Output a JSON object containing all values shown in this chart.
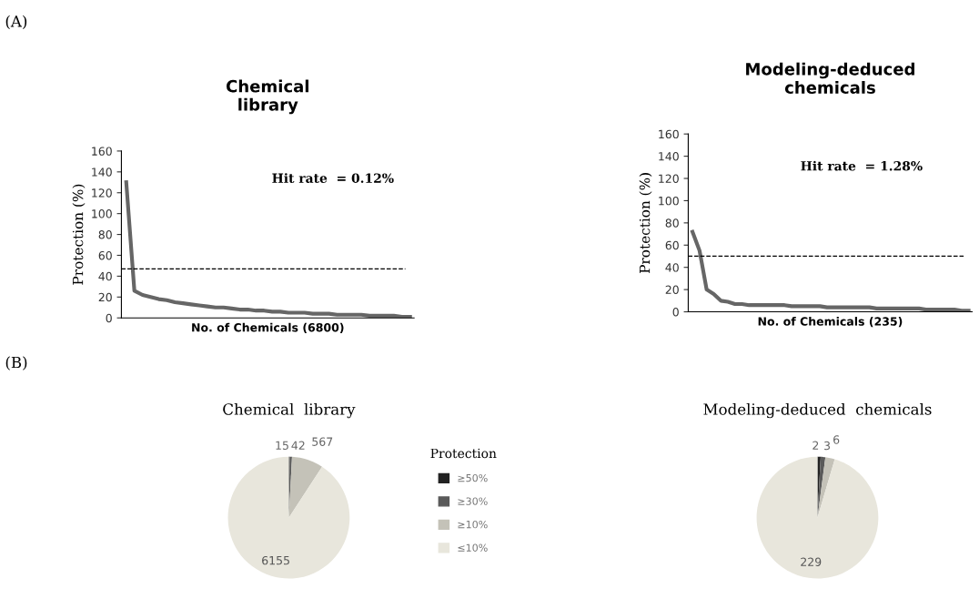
{
  "chart_data": [
    {
      "type": "line",
      "title": "Chemical\nlibrary",
      "xlabel": "No. of Chemicals (6800)",
      "ylabel": "Protection (%)",
      "categories": [
        null,
        null,
        null,
        null,
        null,
        null,
        null,
        null,
        null,
        null,
        null,
        null,
        null,
        null,
        null,
        null,
        null,
        null,
        null,
        null,
        null,
        null,
        null,
        null,
        null,
        null,
        null,
        null,
        null,
        null,
        null,
        null,
        null,
        null,
        null,
        null
      ],
      "series": [
        {
          "color": "#666666",
          "values": [
            130,
            26,
            22,
            20,
            18,
            17,
            15,
            14,
            13,
            12,
            11,
            10,
            10,
            9,
            8,
            8,
            7,
            7,
            6,
            6,
            5,
            5,
            5,
            4,
            4,
            4,
            3,
            3,
            3,
            3,
            2,
            2,
            2,
            2,
            1,
            1
          ]
        }
      ],
      "ylim": [
        0,
        160
      ],
      "yticks": [
        0,
        20,
        40,
        60,
        80,
        100,
        120,
        140,
        160
      ],
      "ref_lines": [
        {
          "axis": "y",
          "value": 47,
          "line_style": "dashed",
          "color": "#000000"
        }
      ],
      "annotations": [
        "(A)",
        "Hit rate  = 0.12%"
      ],
      "grid": false,
      "legend": false,
      "marker": "none",
      "line_style": "solid",
      "tick_labels": "y"
    },
    {
      "type": "line",
      "title": "Modeling-deduced\nchemicals",
      "xlabel": "No. of Chemicals (235)",
      "ylabel": "Protection (%)",
      "categories": [
        null,
        null,
        null,
        null,
        null,
        null,
        null,
        null,
        null,
        null,
        null,
        null,
        null,
        null,
        null,
        null,
        null,
        null,
        null,
        null,
        null,
        null,
        null,
        null,
        null,
        null,
        null,
        null,
        null,
        null,
        null,
        null,
        null,
        null,
        null,
        null,
        null,
        null,
        null,
        null
      ],
      "series": [
        {
          "color": "#666666",
          "values": [
            72,
            55,
            20,
            16,
            10,
            9,
            7,
            7,
            6,
            6,
            6,
            6,
            6,
            6,
            5,
            5,
            5,
            5,
            5,
            4,
            4,
            4,
            4,
            4,
            4,
            4,
            3,
            3,
            3,
            3,
            3,
            3,
            3,
            2,
            2,
            2,
            2,
            2,
            1,
            1
          ]
        }
      ],
      "ylim": [
        0,
        160
      ],
      "yticks": [
        0,
        20,
        40,
        60,
        80,
        100,
        120,
        140,
        160
      ],
      "ref_lines": [
        {
          "axis": "y",
          "value": 50,
          "line_style": "dashed",
          "color": "#000000"
        }
      ],
      "annotations": [
        "Hit rate  = 1.28%"
      ],
      "grid": false,
      "legend": false,
      "marker": "none",
      "line_style": "solid",
      "tick_labels": "y"
    },
    {
      "type": "pie",
      "title": "Chemical  library",
      "legend_title": "Protection",
      "legend": "right",
      "data_labels": true,
      "categories": [
        "≥50%",
        "≥30%",
        "≥10%",
        "≤10%"
      ],
      "values": [
        15,
        42,
        567,
        6155
      ],
      "colors": [
        "#222222",
        "#5a5a5a",
        "#c4c2b8",
        "#e8e6dc"
      ],
      "annotations": [
        "(B)"
      ]
    },
    {
      "type": "pie",
      "title": "Modeling-deduced  chemicals",
      "legend": false,
      "data_labels": true,
      "categories": [
        null,
        null,
        null,
        null
      ],
      "values": [
        2,
        3,
        6,
        229
      ],
      "colors": [
        "#222222",
        "#5a5a5a",
        "#c4c2b8",
        "#e8e6dc"
      ]
    }
  ]
}
